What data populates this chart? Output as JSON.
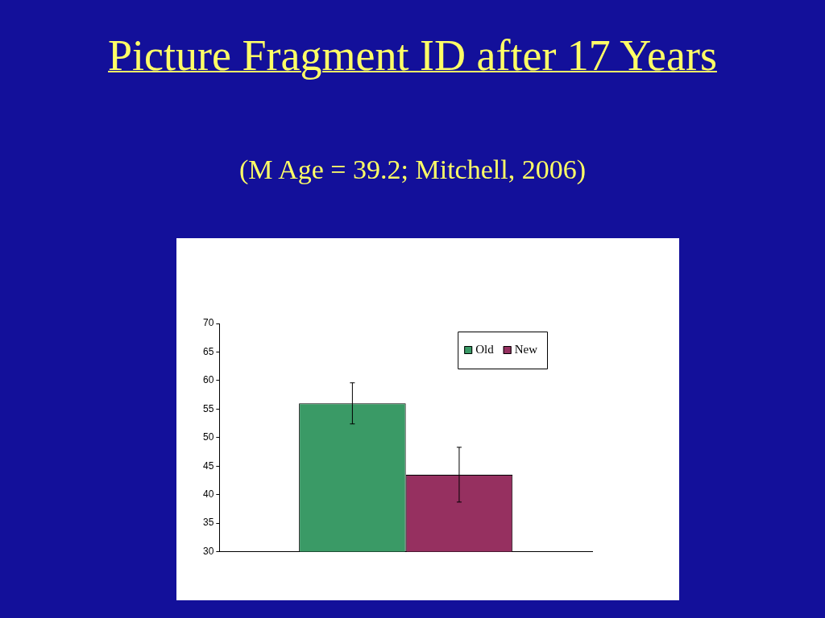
{
  "chart_data": {
    "type": "bar",
    "title": "Picture Fragment ID after 17 Years",
    "subtitle": "(M Age = 39.2; Mitchell, 2006)",
    "categories": [
      null
    ],
    "series": [
      {
        "name": "Old",
        "color": "#3a9a66",
        "values": [
          56.0
        ],
        "errors": [
          3.6
        ]
      },
      {
        "name": "New",
        "color": "#963060",
        "values": [
          43.5
        ],
        "errors": [
          4.8
        ]
      }
    ],
    "ylim": [
      30,
      70
    ],
    "yticks": [
      30,
      35,
      40,
      45,
      50,
      55,
      60,
      65,
      70
    ],
    "grid": false,
    "legend": "top right"
  }
}
